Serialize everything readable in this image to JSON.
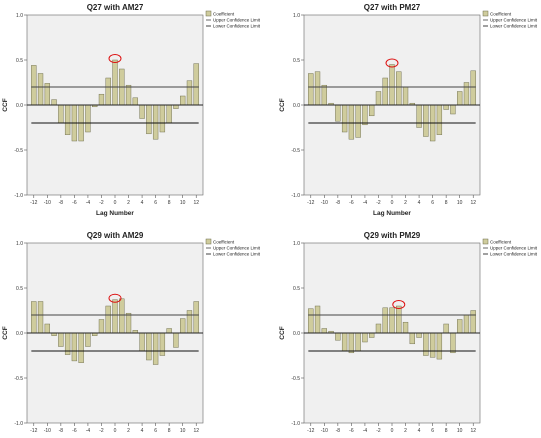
{
  "chart_data": [
    {
      "type": "bar",
      "title": "Q27 with AM27",
      "xlabel": "Lag Number",
      "ylabel": "CCF",
      "ylim": [
        -1.0,
        1.0
      ],
      "yticks": [
        "1.0",
        "0.5",
        "0.0",
        "-0.5",
        "-1.0"
      ],
      "xticks": [
        "-12",
        "-10",
        "-8",
        "-6",
        "-4",
        "-2",
        "0",
        "2",
        "4",
        "6",
        "8",
        "10",
        "12"
      ],
      "x": [
        -12,
        -11,
        -10,
        -9,
        -8,
        -7,
        -6,
        -5,
        -4,
        -3,
        -2,
        -1,
        0,
        1,
        2,
        3,
        4,
        5,
        6,
        7,
        8,
        9,
        10,
        11,
        12
      ],
      "values": [
        0.44,
        0.35,
        0.24,
        0.06,
        -0.2,
        -0.33,
        -0.4,
        -0.4,
        -0.3,
        -0.02,
        0.12,
        0.3,
        0.5,
        0.4,
        0.22,
        0.08,
        -0.15,
        -0.32,
        -0.38,
        -0.3,
        -0.2,
        -0.04,
        0.1,
        0.27,
        0.46
      ],
      "upper_limit": 0.2,
      "lower_limit": -0.2,
      "highlight_lag": 0,
      "legend": [
        "Coefficient",
        "Upper Confidence Limit",
        "Lower Confidence Limit"
      ]
    },
    {
      "type": "bar",
      "title": "Q27 with PM27",
      "xlabel": "Lag Number",
      "ylabel": "CCF",
      "ylim": [
        -1.0,
        1.0
      ],
      "yticks": [
        "1.0",
        "0.5",
        "0.0",
        "-0.5",
        "-1.0"
      ],
      "xticks": [
        "-12",
        "-10",
        "-8",
        "-6",
        "-4",
        "-2",
        "0",
        "2",
        "4",
        "6",
        "8",
        "10",
        "12"
      ],
      "x": [
        -12,
        -11,
        -10,
        -9,
        -8,
        -7,
        -6,
        -5,
        -4,
        -3,
        -2,
        -1,
        0,
        1,
        2,
        3,
        4,
        5,
        6,
        7,
        8,
        9,
        10,
        11,
        12
      ],
      "values": [
        0.35,
        0.37,
        0.22,
        0.02,
        -0.18,
        -0.3,
        -0.38,
        -0.36,
        -0.22,
        -0.12,
        0.15,
        0.3,
        0.45,
        0.37,
        0.2,
        0.02,
        -0.25,
        -0.35,
        -0.4,
        -0.33,
        -0.05,
        -0.1,
        0.15,
        0.25,
        0.38
      ],
      "upper_limit": 0.2,
      "lower_limit": -0.2,
      "highlight_lag": 0,
      "legend": [
        "Coefficient",
        "Upper Confidence Limit",
        "Lower Confidence Limit"
      ]
    },
    {
      "type": "bar",
      "title": "Q29 with AM29",
      "xlabel": "Lag Number",
      "ylabel": "CCF",
      "ylim": [
        -1.0,
        1.0
      ],
      "yticks": [
        "1.0",
        "0.5",
        "0.0",
        "-0.5",
        "-1.0"
      ],
      "xticks": [
        "-12",
        "-10",
        "-8",
        "-6",
        "-4",
        "-2",
        "0",
        "2",
        "4",
        "6",
        "8",
        "10",
        "12"
      ],
      "x": [
        -12,
        -11,
        -10,
        -9,
        -8,
        -7,
        -6,
        -5,
        -4,
        -3,
        -2,
        -1,
        0,
        1,
        2,
        3,
        4,
        5,
        6,
        7,
        8,
        9,
        10,
        11,
        12
      ],
      "values": [
        0.35,
        0.35,
        0.1,
        -0.03,
        -0.15,
        -0.24,
        -0.31,
        -0.33,
        -0.15,
        -0.03,
        0.15,
        0.3,
        0.37,
        0.38,
        0.22,
        0.03,
        -0.2,
        -0.3,
        -0.35,
        -0.25,
        0.05,
        -0.16,
        0.16,
        0.25,
        0.35
      ],
      "upper_limit": 0.2,
      "lower_limit": -0.2,
      "highlight_lag": 0,
      "legend": [
        "Coefficient",
        "Upper Confidence Limit",
        "Lower Confidence Limit"
      ]
    },
    {
      "type": "bar",
      "title": "Q29 with PM29",
      "xlabel": "Lag Number",
      "ylabel": "CCF",
      "ylim": [
        -1.0,
        1.0
      ],
      "yticks": [
        "1.0",
        "0.5",
        "0.0",
        "-0.5",
        "-1.0"
      ],
      "xticks": [
        "-12",
        "-10",
        "-8",
        "-6",
        "-4",
        "-2",
        "0",
        "2",
        "4",
        "6",
        "8",
        "10",
        "12"
      ],
      "x": [
        -12,
        -11,
        -10,
        -9,
        -8,
        -7,
        -6,
        -5,
        -4,
        -3,
        -2,
        -1,
        0,
        1,
        2,
        3,
        4,
        5,
        6,
        7,
        8,
        9,
        10,
        11,
        12
      ],
      "values": [
        0.27,
        0.3,
        0.05,
        0.02,
        -0.08,
        -0.2,
        -0.22,
        -0.2,
        -0.1,
        -0.05,
        0.1,
        0.28,
        0.28,
        0.3,
        0.12,
        -0.12,
        -0.05,
        -0.25,
        -0.27,
        -0.29,
        0.1,
        -0.22,
        0.15,
        0.2,
        0.25
      ],
      "upper_limit": 0.2,
      "lower_limit": -0.2,
      "highlight_lag": 1,
      "legend": [
        "Coefficient",
        "Upper Confidence Limit",
        "Lower Confidence Limit"
      ]
    }
  ],
  "colors": {
    "bar_fill": "#cfcc9d",
    "bar_stroke": "#6b6a4a",
    "plot_bg": "#f0f0f0",
    "limit_line": "#444444",
    "highlight": "#dd1111"
  }
}
